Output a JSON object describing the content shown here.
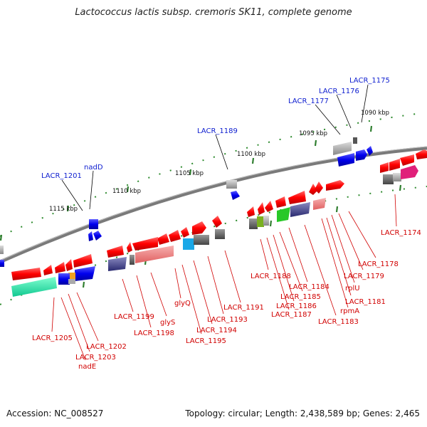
{
  "title": "Lactococcus lactis subsp. cremoris SK11, complete genome",
  "accession": "Accession: NC_008527",
  "topology": "Topology: circular; Length: 2,438,589 bp; Genes: 2,465",
  "scale_labels": [
    "1090 kbp",
    "1095 kbp",
    "1100 kbp",
    "1105 kbp",
    "1110 kbp",
    "1115 kbp"
  ],
  "gene_labels": {
    "top": [
      "LACR_1175",
      "LACR_1176",
      "LACR_1177",
      "LACR_1189",
      "nadD",
      "LACR_1201"
    ],
    "bottom": [
      "LACR_1174",
      "LACR_1178",
      "LACR_1179",
      "rplU",
      "LACR_1181",
      "rpmA",
      "LACR_1183",
      "LACR_1184",
      "LACR_1185",
      "LACR_1186",
      "LACR_1187",
      "LACR_1188",
      "LACR_1191",
      "LACR_1193",
      "LACR_1194",
      "LACR_1195",
      "glyQ",
      "glyS",
      "LACR_1198",
      "LACR_1199",
      "LACR_1205",
      "LACR_1202",
      "LACR_1203",
      "nadE"
    ]
  },
  "colors": {
    "gene_red": "#ff0000",
    "gene_blue": "#0000ee",
    "label_red": "#d10000",
    "label_blue": "#1020d0",
    "backbone": "#808080",
    "tick_green": "#2e8b2e"
  }
}
